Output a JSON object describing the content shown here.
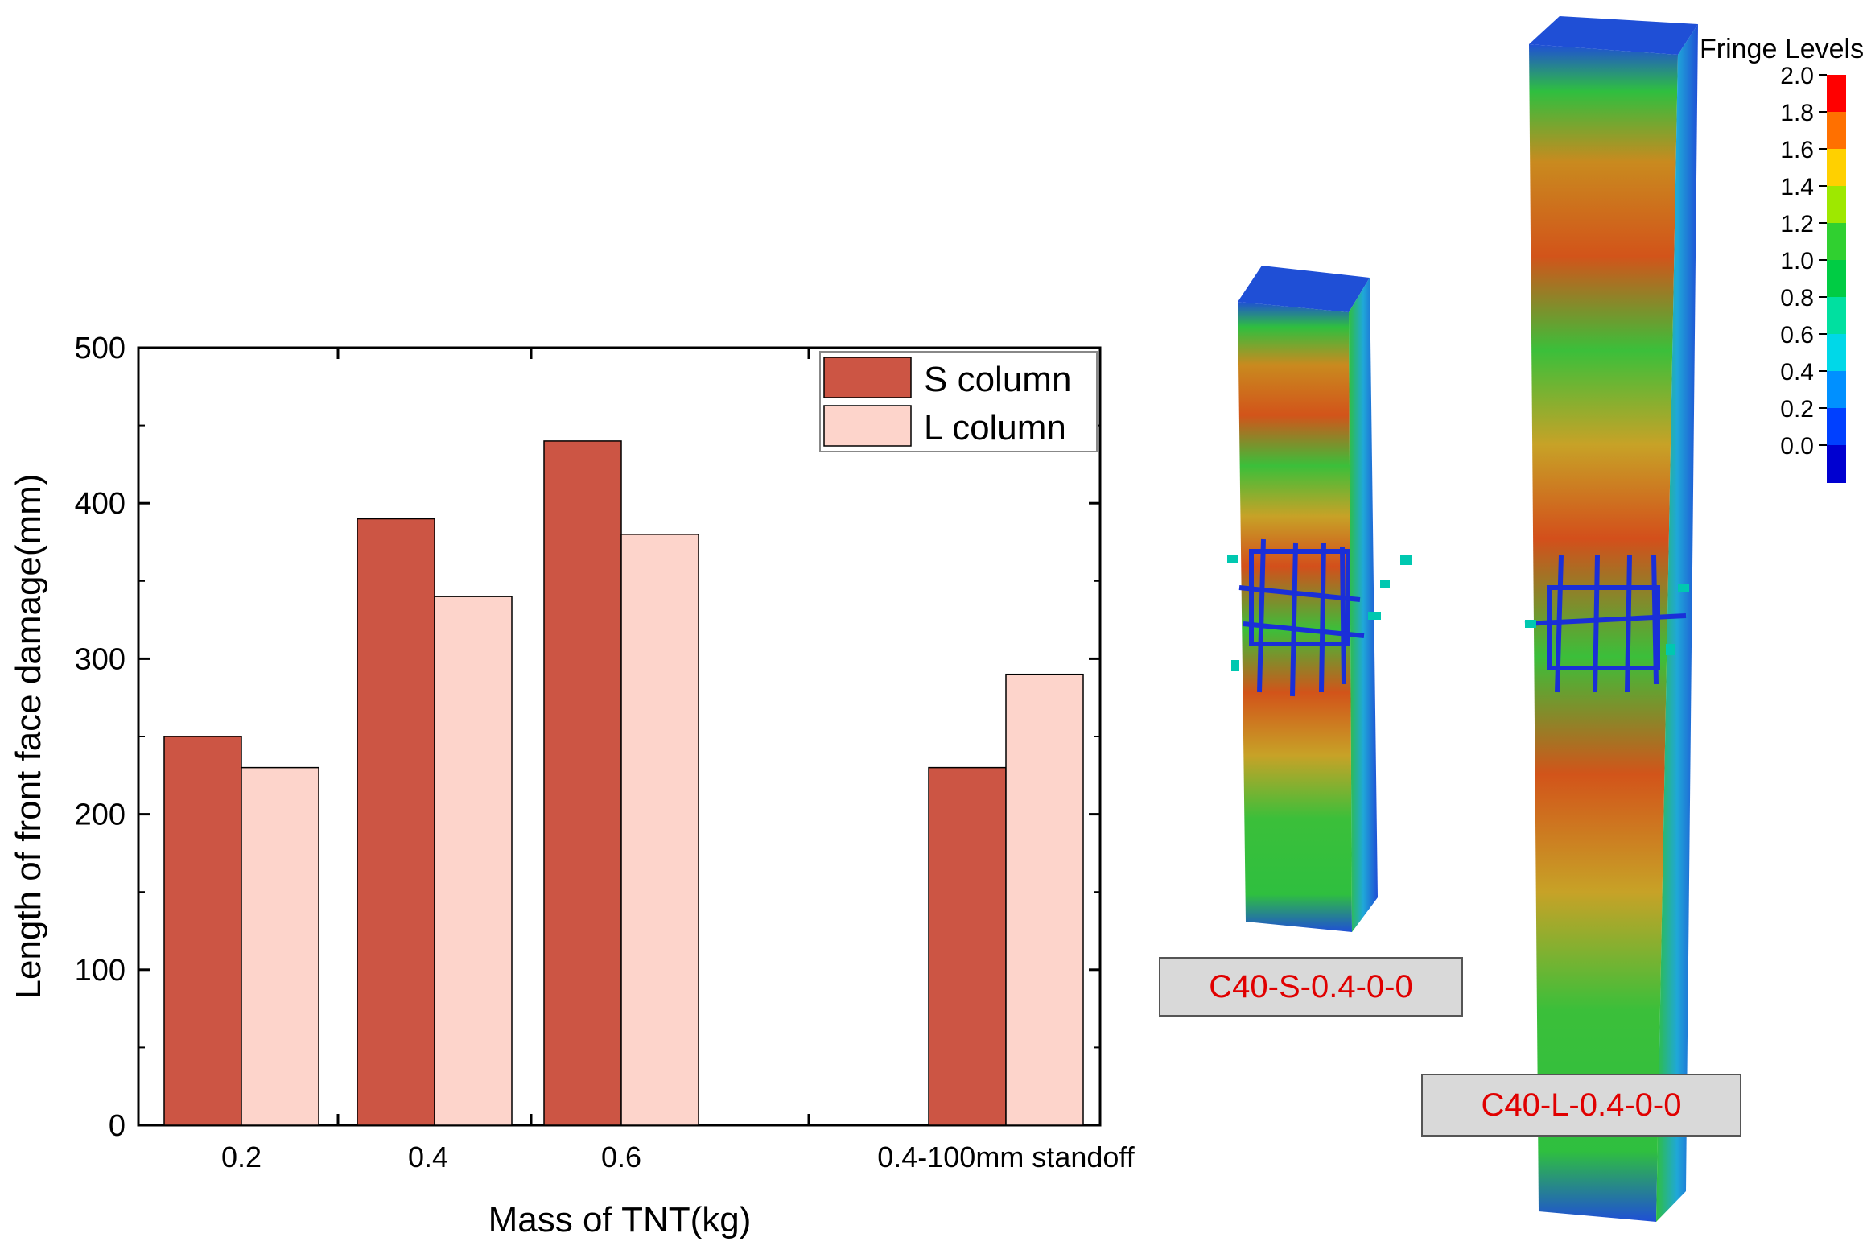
{
  "chart_data": {
    "type": "bar",
    "title": "",
    "xlabel": "Mass of TNT(kg)",
    "ylabel": "Length of front face damage(mm)",
    "ylim": [
      0,
      500
    ],
    "yticks": [
      "0",
      "100",
      "200",
      "300",
      "400",
      "500"
    ],
    "categories": [
      "0.2",
      "0.4",
      "0.6",
      "0.4-100mm standoff"
    ],
    "series": [
      {
        "name": "S column",
        "color": "#cc5544",
        "values": [
          250,
          390,
          440,
          230
        ]
      },
      {
        "name": "L column",
        "color": "#fdd4cb",
        "values": [
          230,
          340,
          380,
          290
        ]
      }
    ],
    "legend_position": "top-right",
    "grid": false
  },
  "simulation": {
    "colorbar_title": "Fringe Levels",
    "colorbar_ticks": [
      "2.0",
      "1.8",
      "1.6",
      "1.4",
      "1.2",
      "1.0",
      "0.8",
      "0.6",
      "0.4",
      "0.2",
      "0.0"
    ],
    "colorbar_colors": [
      "#ff0000",
      "#ff7000",
      "#ffd000",
      "#9ee800",
      "#30d030",
      "#00cc44",
      "#00e0a0",
      "#00d8e8",
      "#0090ff",
      "#0040ff",
      "#0000d0"
    ],
    "short_column_label": "C40-S-0.4-0-0",
    "long_column_label": "C40-L-0.4-0-0"
  }
}
